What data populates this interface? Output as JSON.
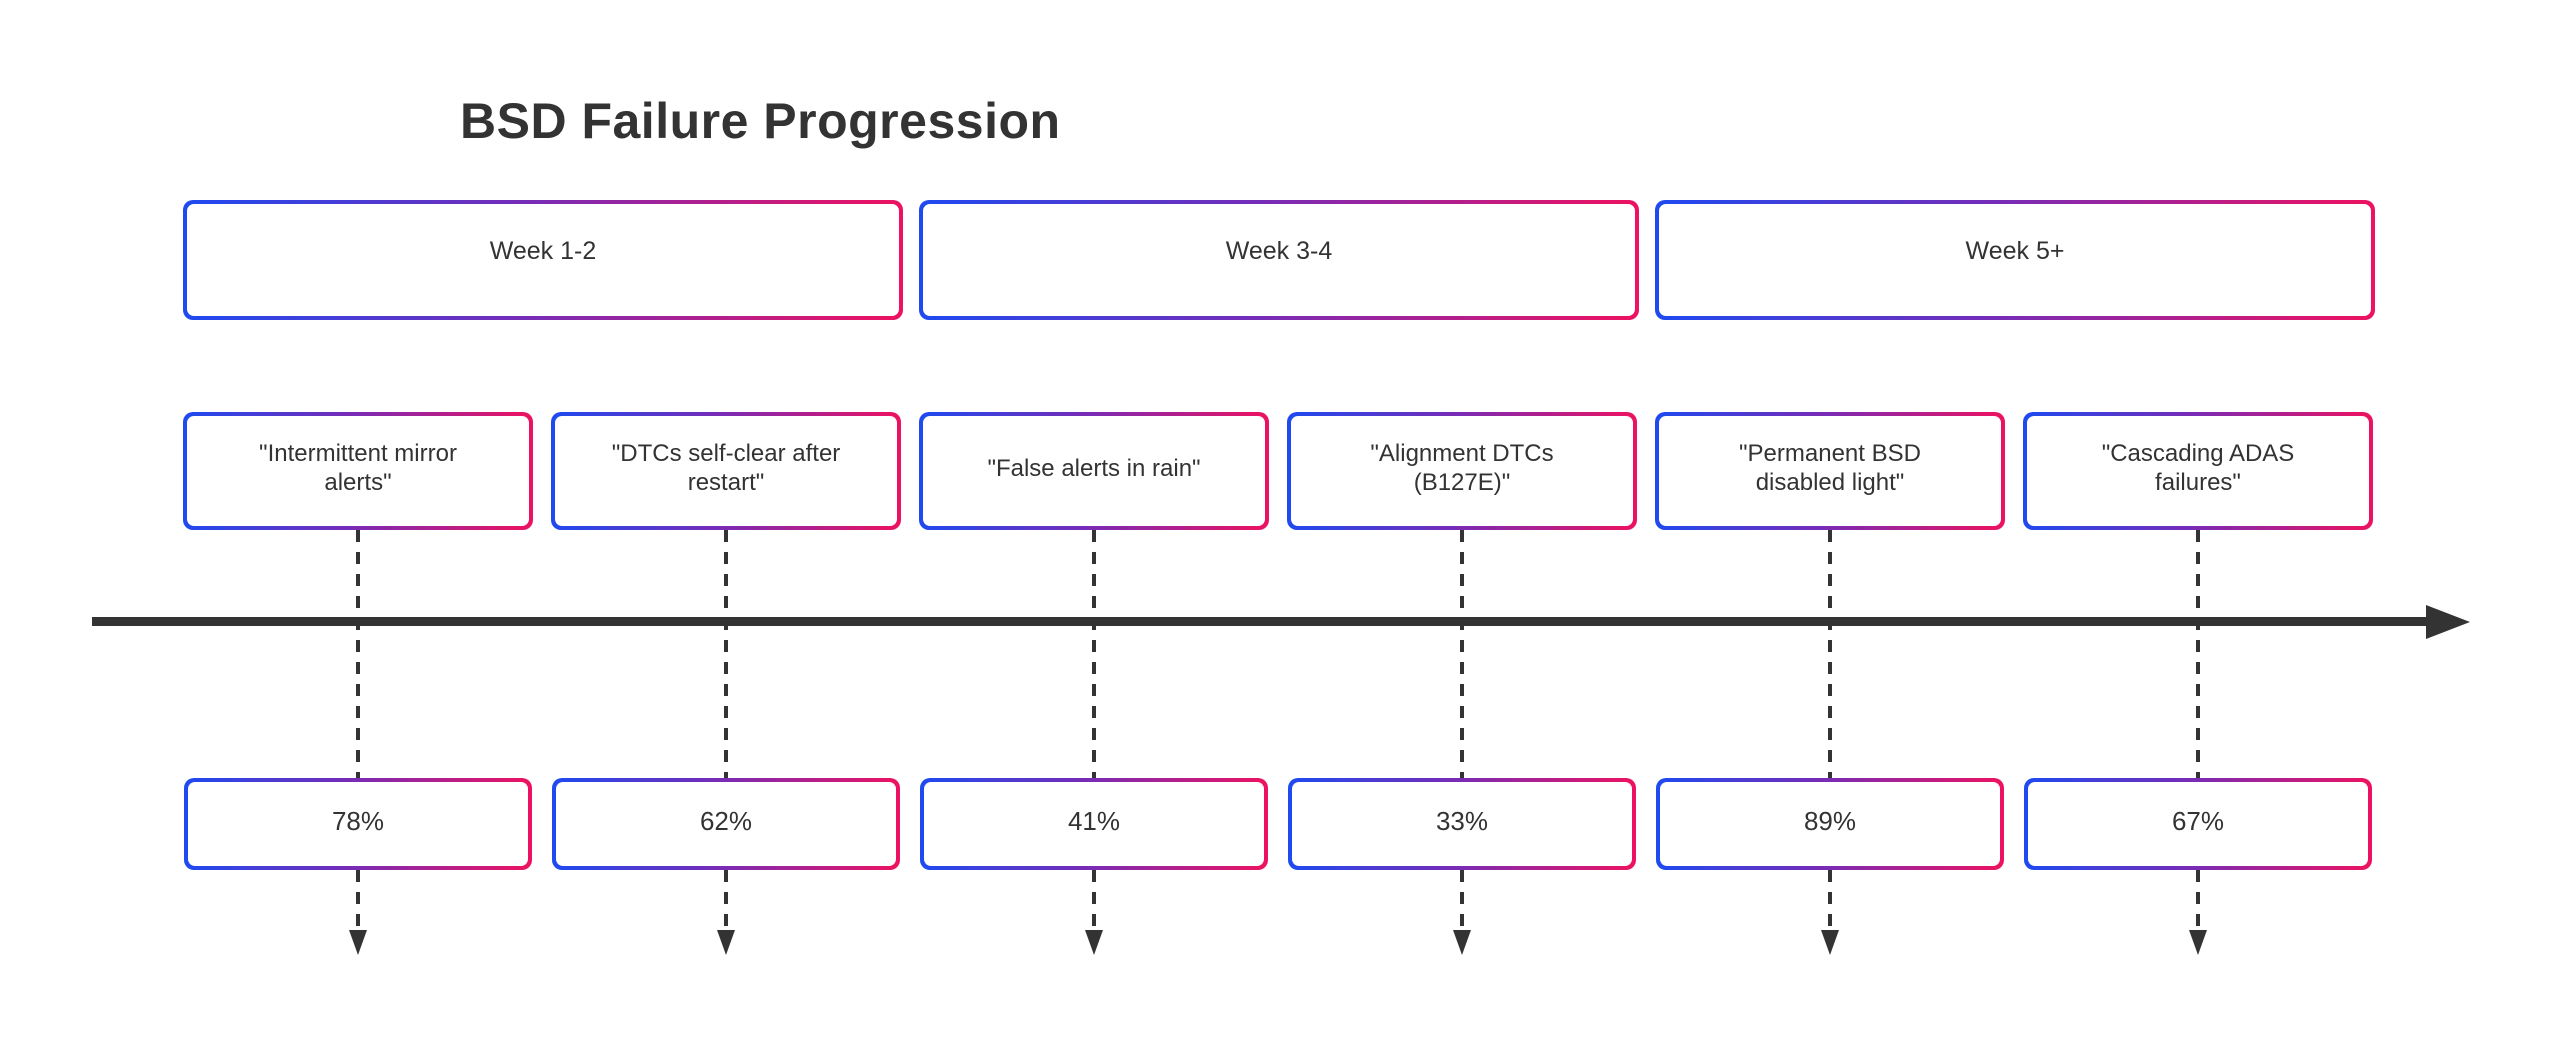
{
  "title": "BSD Failure Progression",
  "colors": {
    "gradient_start": "#1e4af0",
    "gradient_end": "#ee1260",
    "arrow_stroke": "#333333",
    "text": "#333333",
    "background": "#ffffff"
  },
  "phases": [
    {
      "label": "Week 1-2"
    },
    {
      "label": "Week 3-4"
    },
    {
      "label": "Week 5+"
    }
  ],
  "events": [
    {
      "symptom": "\"Intermittent mirror\nalerts\"",
      "percent": "78%"
    },
    {
      "symptom": "\"DTCs self-clear after\nrestart\"",
      "percent": "62%"
    },
    {
      "symptom": "\"False alerts in rain\"",
      "percent": "41%"
    },
    {
      "symptom": "\"Alignment DTCs\n(B127E)\"",
      "percent": "33%"
    },
    {
      "symptom": "\"Permanent BSD\ndisabled light\"",
      "percent": "89%"
    },
    {
      "symptom": "\"Cascading ADAS\nfailures\"",
      "percent": "67%"
    }
  ]
}
